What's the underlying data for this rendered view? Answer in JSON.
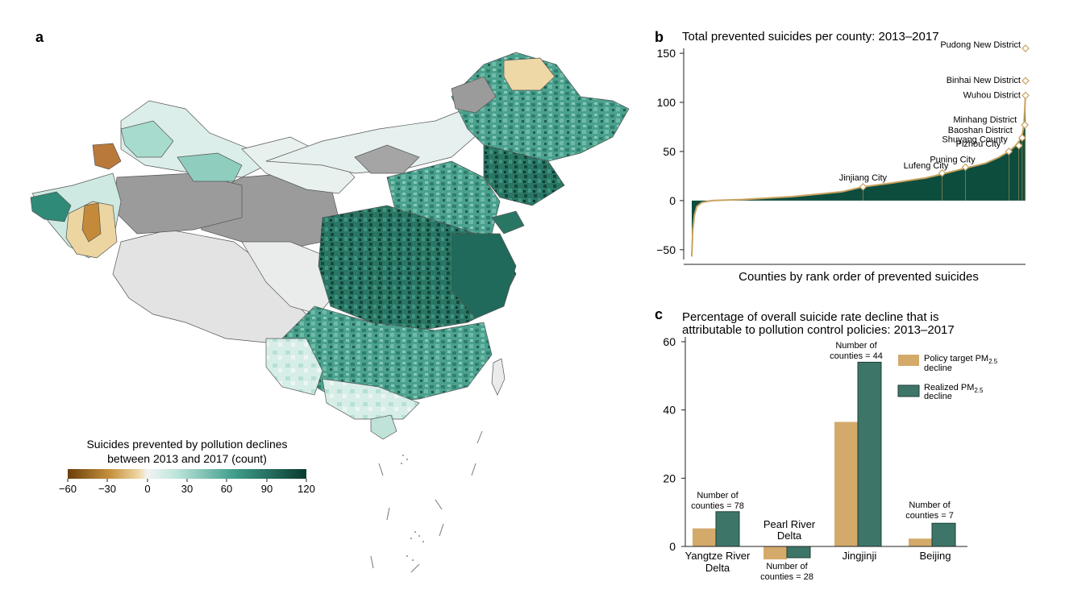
{
  "panels": {
    "a": {
      "letter": "a",
      "legend": {
        "title_line1": "Suicides prevented by pollution declines",
        "title_line2": "between 2013 and 2017 (count)",
        "ticks": [
          "−60",
          "−30",
          "0",
          "30",
          "60",
          "90",
          "120"
        ],
        "scale_min": -60,
        "scale_max": 120,
        "colors": {
          "neg_dark": "#6b3f0a",
          "neg_mid": "#c8923f",
          "neg_light": "#efd9a8",
          "zero": "#f3f3f3",
          "pos_light": "#bfe6dc",
          "pos_mid": "#3f9d8a",
          "pos_dark": "#0a3b2f",
          "no_data": "#9b9b9b"
        }
      }
    },
    "b": {
      "letter": "b",
      "title": "Total prevented suicides per county: 2013–2017",
      "x_axis_label": "Counties by rank order of prevented suicides"
    },
    "c": {
      "letter": "c",
      "title_line1": "Percentage of overall suicide rate decline that is",
      "title_line2": "attributable to pollution control policies: 2013–2017",
      "legend": {
        "policy_line1": "Policy target PM",
        "policy_line2": "decline",
        "realized_line1": "Realized PM",
        "realized_line2": "decline",
        "subscript": "2.5"
      },
      "annotations": {
        "yrd_line1": "Number of",
        "yrd_line2": "counties = 78",
        "prd_line1": "Number of",
        "prd_line2": "counties = 28",
        "jjj_line1": "Number of",
        "jjj_line2": "counties = 44",
        "bj_line1": "Number of",
        "bj_line2": "counties = 7"
      },
      "category_labels": {
        "yrd_line1": "Yangtze River",
        "yrd_line2": "Delta",
        "prd_line1": "Pearl River",
        "prd_line2": "Delta",
        "jjj": "Jingjinji",
        "bj": "Beijing"
      }
    }
  },
  "chart_data": [
    {
      "type": "area",
      "panel": "b",
      "title": "Total prevented suicides per county: 2013–2017",
      "xlabel": "Counties by rank order of prevented suicides",
      "ylabel": "",
      "ylim": [
        -60,
        155
      ],
      "yticks": [
        -50,
        0,
        50,
        100,
        150
      ],
      "colors": {
        "fill": "#0d4d3d",
        "line": "#c9a260",
        "marker": "#c9a260"
      },
      "curve": [
        {
          "x": 0.0,
          "y": -57
        },
        {
          "x": 0.003,
          "y": -30
        },
        {
          "x": 0.008,
          "y": -15
        },
        {
          "x": 0.015,
          "y": -6
        },
        {
          "x": 0.03,
          "y": -2
        },
        {
          "x": 0.06,
          "y": 0
        },
        {
          "x": 0.15,
          "y": 1
        },
        {
          "x": 0.3,
          "y": 4
        },
        {
          "x": 0.45,
          "y": 9
        },
        {
          "x": 0.513,
          "y": 14
        },
        {
          "x": 0.6,
          "y": 18
        },
        {
          "x": 0.7,
          "y": 23
        },
        {
          "x": 0.75,
          "y": 27
        },
        {
          "x": 0.82,
          "y": 33
        },
        {
          "x": 0.88,
          "y": 38
        },
        {
          "x": 0.92,
          "y": 44
        },
        {
          "x": 0.95,
          "y": 50
        },
        {
          "x": 0.97,
          "y": 56
        },
        {
          "x": 0.98,
          "y": 60
        },
        {
          "x": 0.99,
          "y": 67
        },
        {
          "x": 0.995,
          "y": 76
        },
        {
          "x": 0.998,
          "y": 95
        },
        {
          "x": 1.0,
          "y": 108
        }
      ],
      "labeled_points": [
        {
          "label": "Pudong New District",
          "x": 1.0,
          "y": 155
        },
        {
          "label": "Binhai New District",
          "x": 1.0,
          "y": 122
        },
        {
          "label": "Wuhou District",
          "x": 1.0,
          "y": 107
        },
        {
          "label": "Minhang District",
          "x": 0.998,
          "y": 77
        },
        {
          "label": "Baoshan District",
          "x": 0.99,
          "y": 64
        },
        {
          "label": "Shuyang County",
          "x": 0.98,
          "y": 56
        },
        {
          "label": "Pizhou City",
          "x": 0.95,
          "y": 50
        },
        {
          "label": "Puning City",
          "x": 0.82,
          "y": 34
        },
        {
          "label": "Lufeng City",
          "x": 0.75,
          "y": 28
        },
        {
          "label": "Jinjiang City",
          "x": 0.513,
          "y": 14
        }
      ]
    },
    {
      "type": "bar",
      "panel": "c",
      "title": "Percentage of overall suicide rate decline that is attributable to pollution control policies: 2013–2017",
      "categories": [
        "Yangtze River Delta",
        "Pearl River Delta",
        "Jingjinji",
        "Beijing"
      ],
      "series": [
        {
          "name": "Policy target PM2.5 decline",
          "color": "#d4aa6a",
          "values": [
            5.3,
            -3.8,
            36.5,
            2.3
          ]
        },
        {
          "name": "Realized PM2.5 decline",
          "color": "#3d7569",
          "values": [
            10.2,
            -3.3,
            54.0,
            6.8
          ]
        }
      ],
      "ylim": [
        -4,
        60
      ],
      "yticks": [
        0,
        20,
        40,
        60
      ],
      "legend_position": "top-right"
    }
  ]
}
